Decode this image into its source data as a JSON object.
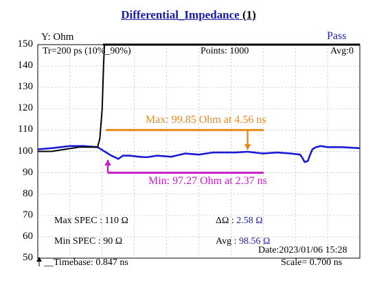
{
  "title": "Differential_Impedance",
  "title_index": "(1)",
  "y_axis_label": "Y: Ohm",
  "status": "Pass",
  "tr_label": "Tr=200  ps (10%_90%)",
  "points_label": "Points: 1000",
  "avg_count_label": "Avg:0",
  "max_marker": "Max: 99.85  Ohm at 4.56  ns",
  "min_marker": "Min: 97.27  Ohm at 2.37  ns",
  "max_spec": "Max SPEC : 110 Ω",
  "min_spec": "Min  SPEC : 90  Ω",
  "delta_label": "ΔΩ :",
  "delta_value": "2.58 Ω",
  "avg_label": "Avg :",
  "avg_value": "98.56 Ω",
  "date": "Date:2023/01/06 15:28",
  "timebase": "__Timebase: 0.847  ns",
  "scale": "Scale=     0.700 ns",
  "colors": {
    "trace_blue": "#1a1ad6",
    "trace_black": "#000000",
    "max_marker": "#e88a1a",
    "min_marker": "#c41ec4",
    "text_blue": "#1a1aa6"
  },
  "chart_data": {
    "type": "line",
    "title": "Differential_Impedance",
    "ylabel": "Y: Ohm",
    "xlabel": "",
    "ylim": [
      50,
      150
    ],
    "y_ticks": [
      150,
      140,
      130,
      120,
      110,
      100,
      90,
      80,
      70,
      60,
      50
    ],
    "xlim_ns": [
      0,
      7.0
    ],
    "series": [
      {
        "color": "#1a1ad6",
        "x": [
          0,
          0.3,
          0.7,
          1.0,
          1.3,
          1.45,
          1.6,
          1.75,
          1.85,
          2.0,
          2.2,
          2.37,
          2.6,
          2.9,
          3.2,
          3.5,
          3.8,
          4.1,
          4.3,
          4.56,
          4.9,
          5.2,
          5.5,
          5.7,
          5.75,
          5.8,
          5.87,
          5.92,
          5.97,
          6.05,
          6.15,
          6.3,
          6.6,
          7.0
        ],
        "y": [
          101,
          101.5,
          102.5,
          102.5,
          102,
          100,
          98,
          96.5,
          98,
          98,
          97.5,
          97.27,
          98,
          97.5,
          99,
          98.5,
          99.5,
          99.5,
          99.5,
          99.85,
          99,
          99.5,
          99,
          98.5,
          97,
          95,
          95.5,
          98.5,
          101,
          102,
          102.5,
          102,
          102,
          101.5
        ]
      },
      {
        "color": "#000000",
        "x": [
          0,
          0.3,
          0.6,
          0.9,
          1.2,
          1.3,
          1.35,
          1.4,
          1.43,
          1.45,
          1.46,
          1.47
        ],
        "y": [
          100,
          100,
          101,
          102,
          102,
          102,
          106,
          120,
          140,
          150,
          155,
          160
        ]
      }
    ],
    "annotations": [
      {
        "label": "Max: 99.85  Ohm at 4.56  ns",
        "x_ns": 4.56,
        "y": 99.85,
        "line_y": 110,
        "color": "#e88a1a"
      },
      {
        "label": "Min: 97.27  Ohm at 2.37  ns",
        "x_ns": 2.37,
        "y": 97.27,
        "line_y": 90,
        "color": "#c41ec4"
      }
    ]
  }
}
